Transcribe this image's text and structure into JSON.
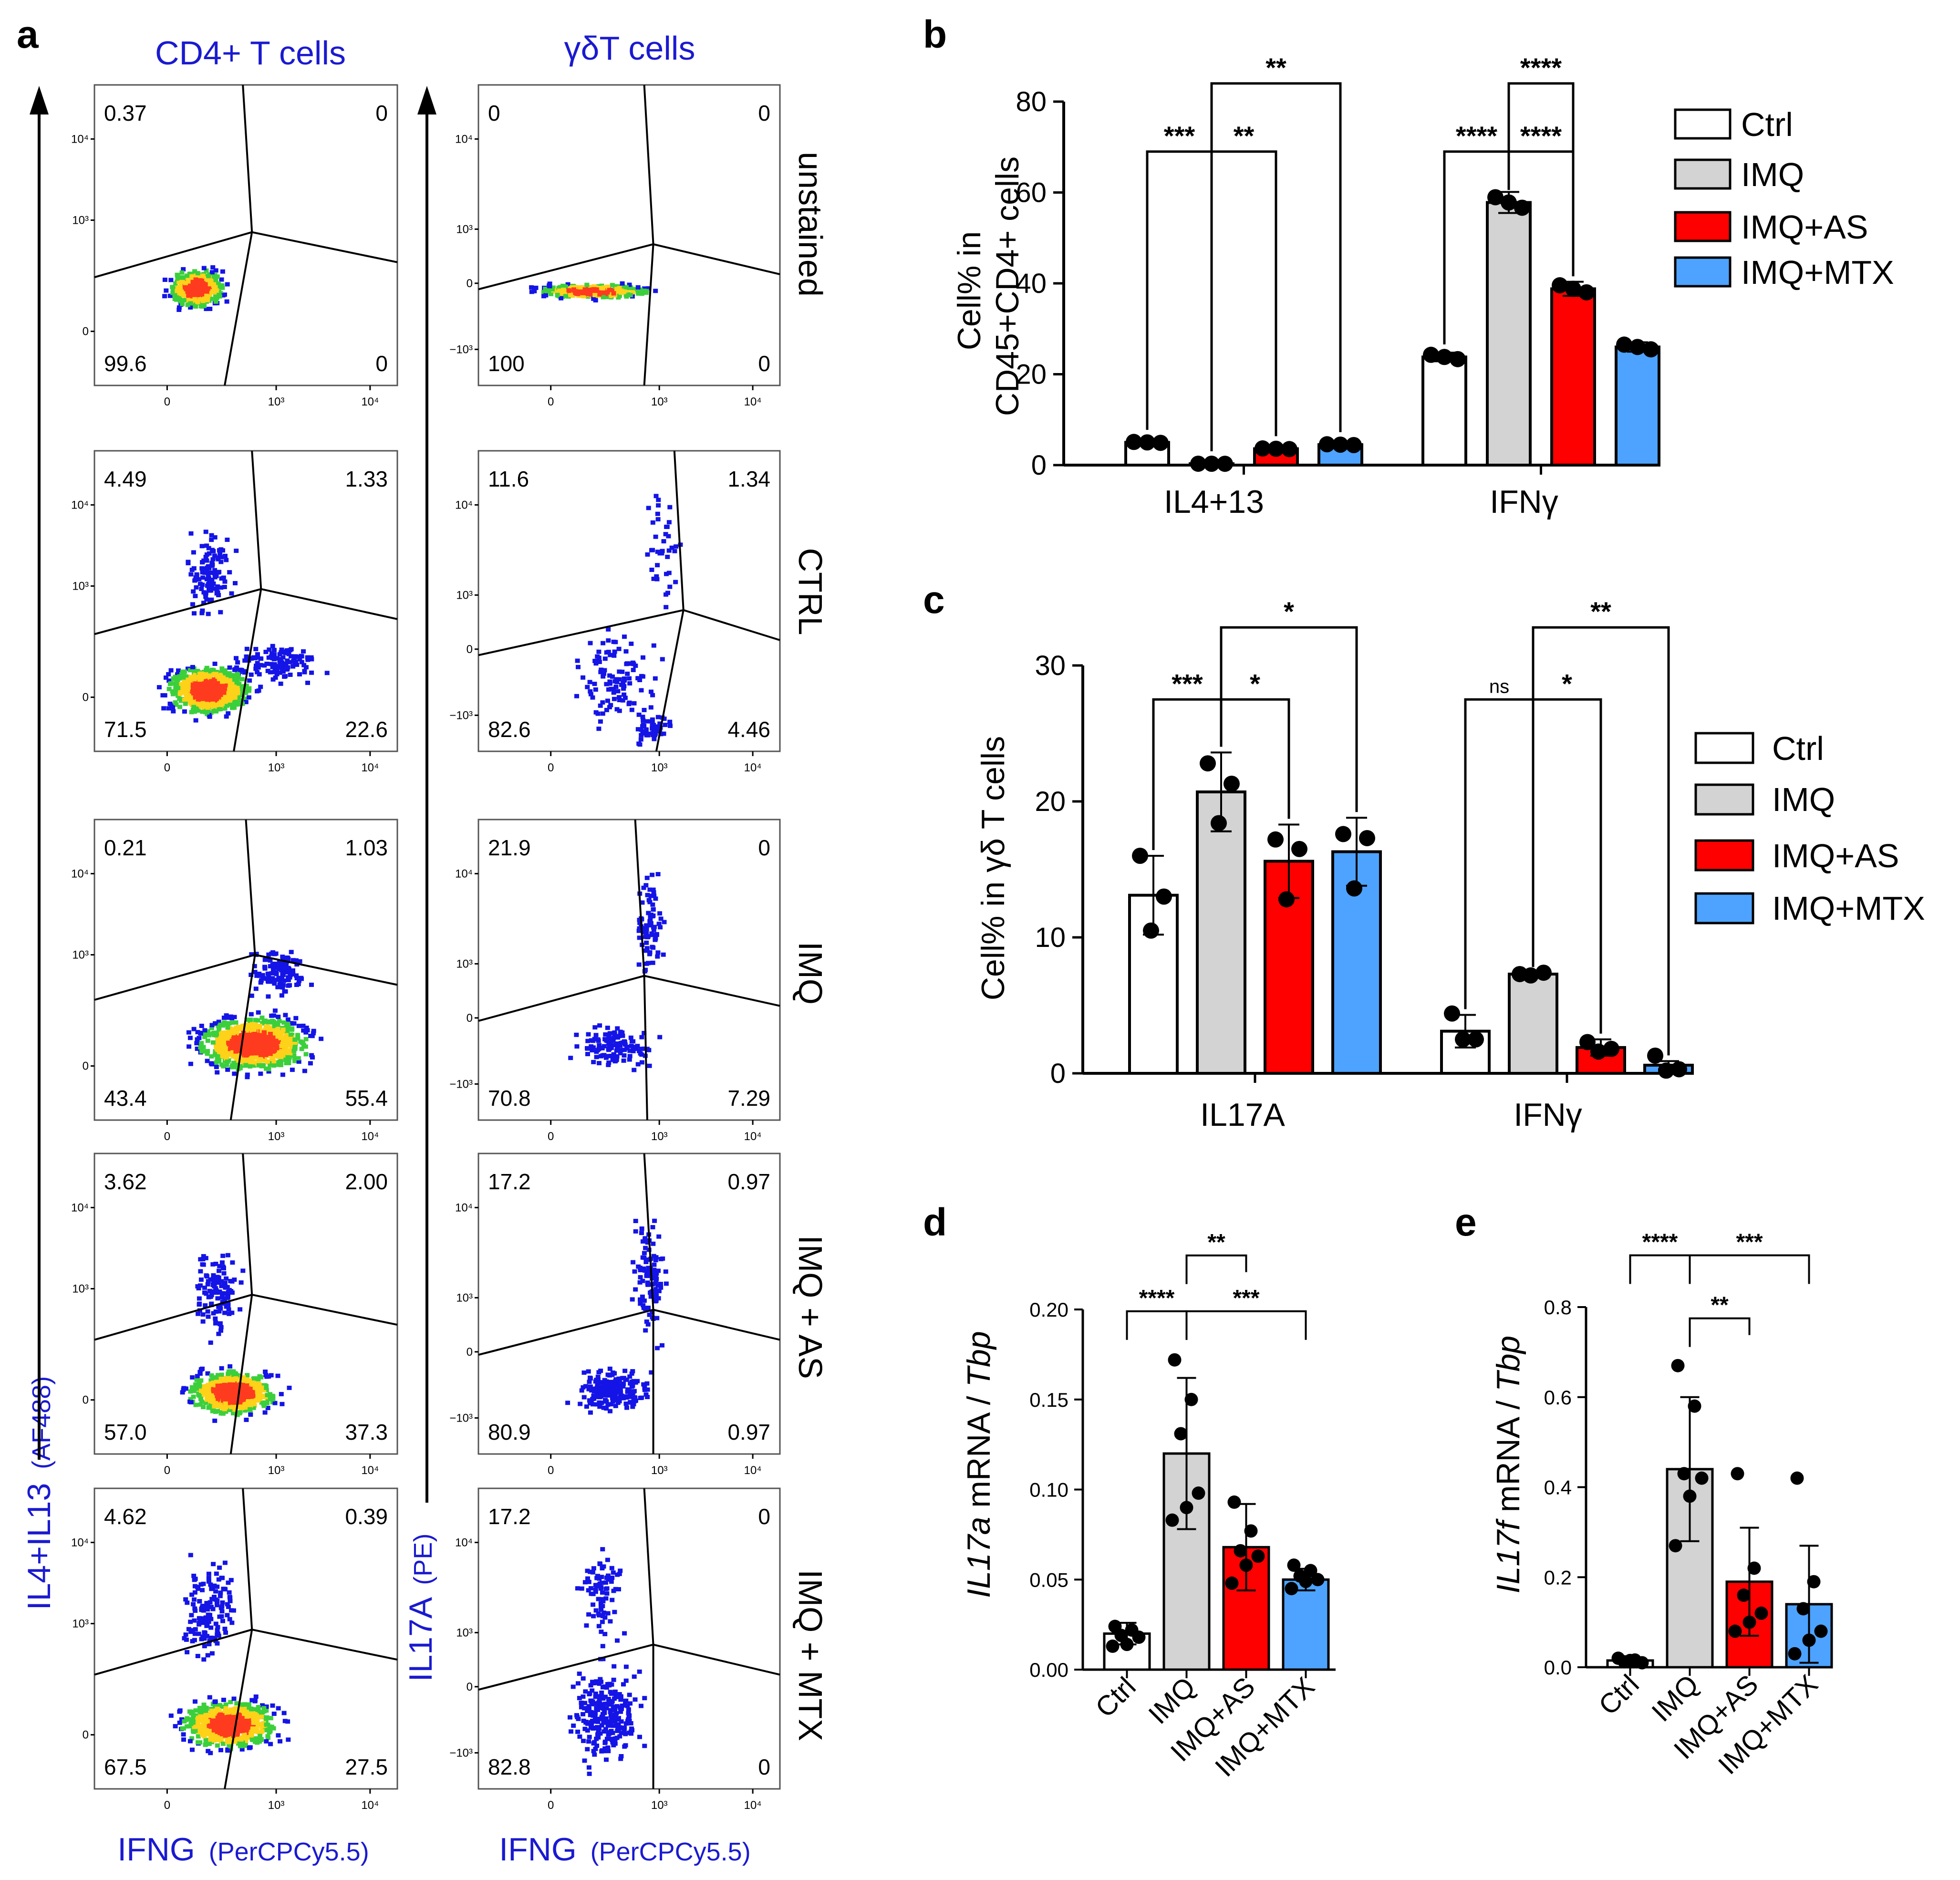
{
  "figure": {
    "panel_letters": [
      "a",
      "b",
      "c",
      "d",
      "e"
    ]
  },
  "colors": {
    "ctrl": "#ffffff",
    "imq": "#d3d3d3",
    "as": "#ff0000",
    "mtx": "#4da3ff",
    "blue_label": "#1a1ad0"
  },
  "chart_data": [
    {
      "id": "a",
      "type": "scatter",
      "title": "Flow cytometry dot plots",
      "columns": [
        {
          "title": "CD4+ T cells",
          "ylabel_main": "IL4+IL13",
          "ylabel_sub": "(AF488)"
        },
        {
          "title": "γδT cells",
          "ylabel_main": "IL17A",
          "ylabel_sub": "(PE)"
        }
      ],
      "xlabel_main": "IFNG",
      "xlabel_sub": "(PerCPCy5.5)",
      "x_ticks": [
        "0",
        "10³",
        "10⁴"
      ],
      "y_ticks": [
        "10⁴",
        "10³",
        "0"
      ],
      "y_ticks_gd": [
        "10⁴",
        "10³",
        "0",
        "−10³"
      ],
      "rows": [
        "unstained",
        "CTRL",
        "IMQ",
        "IMQ + AS",
        "IMQ + MTX"
      ],
      "quadrants": {
        "cd4": [
          [
            "0.37",
            "0",
            "99.6",
            "0"
          ],
          [
            "4.49",
            "1.33",
            "71.5",
            "22.6"
          ],
          [
            "0.21",
            "1.03",
            "43.4",
            "55.4"
          ],
          [
            "3.62",
            "2.00",
            "57.0",
            "37.3"
          ],
          [
            "4.62",
            "0.39",
            "67.5",
            "27.5"
          ]
        ],
        "gd": [
          [
            "0",
            "0",
            "100",
            "0"
          ],
          [
            "11.6",
            "1.34",
            "82.6",
            "4.46"
          ],
          [
            "21.9",
            "0",
            "70.8",
            "7.29"
          ],
          [
            "17.2",
            "0.97",
            "80.9",
            "0.97"
          ],
          [
            "17.2",
            "0",
            "82.8",
            "0"
          ]
        ]
      }
    },
    {
      "id": "b",
      "type": "bar",
      "ylabel": [
        "Cell% in",
        "CD45+CD4+ cells"
      ],
      "ylim": [
        0,
        80
      ],
      "yticks": [
        0,
        20,
        40,
        60,
        80
      ],
      "categories": [
        "IL4+13",
        "IFNγ"
      ],
      "series": [
        {
          "name": "Ctrl",
          "values": [
            5.0,
            23.8
          ]
        },
        {
          "name": "IMQ",
          "values": [
            0.3,
            57.8
          ]
        },
        {
          "name": "IMQ+AS",
          "values": [
            3.6,
            38.8
          ]
        },
        {
          "name": "IMQ+MTX",
          "values": [
            4.5,
            26.0
          ]
        }
      ],
      "sig": [
        {
          "label": "***",
          "cat": 0,
          "a": 0,
          "b": 1,
          "y": 69
        },
        {
          "label": "**",
          "cat": 0,
          "a": 1,
          "b": 2,
          "y": 69
        },
        {
          "label": "**",
          "cat": 0,
          "a": 1,
          "b": 3,
          "y": 84
        },
        {
          "label": "****",
          "cat": 1,
          "a": 0,
          "b": 1,
          "y": 69
        },
        {
          "label": "****",
          "cat": 1,
          "a": 1,
          "b": 2,
          "y": 69
        },
        {
          "label": "****",
          "cat": 1,
          "a": 1,
          "b": 2,
          "y": 84
        }
      ]
    },
    {
      "id": "c",
      "type": "bar",
      "ylabel": [
        "Cell% in γδ T cells"
      ],
      "ylim": [
        0,
        30
      ],
      "yticks": [
        0,
        10,
        20,
        30
      ],
      "categories": [
        "IL17A",
        "IFNγ"
      ],
      "series": [
        {
          "name": "Ctrl",
          "values": [
            13.1,
            3.1
          ],
          "points": [
            [
              16.0,
              13.0,
              10.5
            ],
            [
              4.4,
              2.5,
              2.5
            ]
          ],
          "err": [
            2.9,
            1.2
          ]
        },
        {
          "name": "IMQ",
          "values": [
            20.7,
            7.3
          ],
          "points": [
            [
              22.8,
              21.3,
              18.4
            ],
            [
              7.3,
              7.4,
              7.2
            ]
          ],
          "err": [
            2.9,
            0.1
          ]
        },
        {
          "name": "IMQ+AS",
          "values": [
            15.6,
            1.9
          ],
          "points": [
            [
              17.2,
              16.5,
              12.8
            ],
            [
              2.3,
              1.8,
              1.6
            ]
          ],
          "err": [
            2.7,
            0.6
          ]
        },
        {
          "name": "IMQ+MTX",
          "values": [
            16.3,
            0.6
          ],
          "points": [
            [
              17.6,
              17.3,
              13.6
            ],
            [
              1.3,
              0.3,
              0.2
            ]
          ],
          "err": [
            2.5,
            0.3
          ]
        }
      ],
      "sig": [
        {
          "label": "***",
          "cat": 0,
          "a": 0,
          "b": 1,
          "y": 27.5
        },
        {
          "label": "*",
          "cat": 0,
          "a": 1,
          "b": 2,
          "y": 27.5
        },
        {
          "label": "*",
          "cat": 0,
          "a": 1,
          "b": 3,
          "y": 32.8
        },
        {
          "label": "ns",
          "cat": 1,
          "a": 0,
          "b": 1,
          "y": 27.5
        },
        {
          "label": "*",
          "cat": 1,
          "a": 1,
          "b": 2,
          "y": 27.5
        },
        {
          "label": "**",
          "cat": 1,
          "a": 1,
          "b": 3,
          "y": 32.8
        }
      ]
    },
    {
      "id": "d",
      "type": "bar",
      "ylabel_gene": "IL17a",
      "ylabel_mid": " mRNA / ",
      "ylabel_ref": "Tbp",
      "ylim": [
        0,
        0.2
      ],
      "yticks": [
        "0.00",
        "0.05",
        "0.10",
        "0.15",
        "0.20"
      ],
      "categories": [
        "Ctrl",
        "IMQ",
        "IMQ+AS",
        "IMQ+MTX"
      ],
      "values": [
        0.02,
        0.12,
        0.068,
        0.05
      ],
      "sd": [
        0.006,
        0.042,
        0.024,
        0.006
      ],
      "points": [
        [
          0.024,
          0.022,
          0.019,
          0.018,
          0.014,
          0.013
        ],
        [
          0.172,
          0.15,
          0.131,
          0.098,
          0.09,
          0.083
        ],
        [
          0.093,
          0.077,
          0.066,
          0.063,
          0.058,
          0.048
        ],
        [
          0.058,
          0.055,
          0.052,
          0.05,
          0.049,
          0.045
        ]
      ],
      "sig": [
        {
          "label": "****",
          "a": 0,
          "b": 1,
          "y": 0.199
        },
        {
          "label": "**",
          "a": 1,
          "b": 2,
          "y": 0.23
        },
        {
          "label": "***",
          "a": 1,
          "b": 3,
          "y": 0.199
        }
      ]
    },
    {
      "id": "e",
      "type": "bar",
      "ylabel_gene": "IL17f",
      "ylabel_mid": " mRNA / ",
      "ylabel_ref": "Tbp",
      "ylim": [
        0,
        0.8
      ],
      "yticks": [
        "0.0",
        "0.2",
        "0.4",
        "0.6",
        "0.8"
      ],
      "categories": [
        "Ctrl",
        "IMQ",
        "IMQ+AS",
        "IMQ+MTX"
      ],
      "values": [
        0.015,
        0.44,
        0.19,
        0.14
      ],
      "sd": [
        0.004,
        0.16,
        0.12,
        0.13
      ],
      "points": [
        [
          0.02,
          0.016,
          0.012,
          0.01,
          0.015
        ],
        [
          0.67,
          0.58,
          0.43,
          0.42,
          0.38,
          0.27
        ],
        [
          0.43,
          0.22,
          0.16,
          0.12,
          0.1,
          0.08
        ],
        [
          0.42,
          0.19,
          0.13,
          0.08,
          0.06,
          0.03
        ]
      ],
      "sig": [
        {
          "label": "****",
          "a": 0,
          "b": 1,
          "y": 0.915
        },
        {
          "label": "**",
          "a": 1,
          "b": 2,
          "y": 0.775
        },
        {
          "label": "***",
          "a": 1,
          "b": 3,
          "y": 0.915
        }
      ]
    }
  ],
  "legend": {
    "items": [
      "Ctrl",
      "IMQ",
      "IMQ+AS",
      "IMQ+MTX"
    ]
  }
}
